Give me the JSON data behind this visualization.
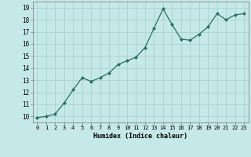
{
  "x": [
    0,
    1,
    2,
    3,
    4,
    5,
    6,
    7,
    8,
    9,
    10,
    11,
    12,
    13,
    14,
    15,
    16,
    17,
    18,
    19,
    20,
    21,
    22,
    23
  ],
  "y": [
    9.9,
    10.0,
    10.2,
    11.1,
    12.2,
    13.2,
    12.9,
    13.2,
    13.6,
    14.3,
    14.6,
    14.9,
    15.7,
    17.3,
    18.9,
    17.6,
    16.4,
    16.3,
    16.8,
    17.4,
    18.5,
    18.0,
    18.4,
    18.5
  ],
  "xlabel": "Humidex (Indice chaleur)",
  "ylabel_ticks": [
    10,
    11,
    12,
    13,
    14,
    15,
    16,
    17,
    18,
    19
  ],
  "xlim": [
    -0.5,
    23.5
  ],
  "ylim": [
    9.5,
    19.5
  ],
  "bg_color": "#c5e8e8",
  "grid_color": "#aed4d4",
  "line_color": "#2a7060",
  "marker_color": "#2a7060"
}
